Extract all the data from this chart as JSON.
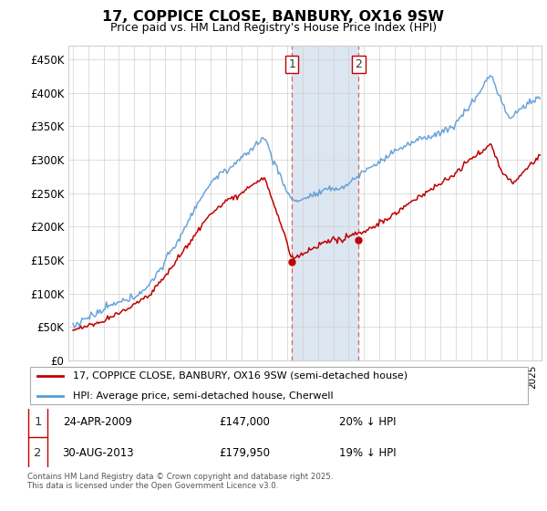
{
  "title": "17, COPPICE CLOSE, BANBURY, OX16 9SW",
  "subtitle": "Price paid vs. HM Land Registry's House Price Index (HPI)",
  "legend_line1": "17, COPPICE CLOSE, BANBURY, OX16 9SW (semi-detached house)",
  "legend_line2": "HPI: Average price, semi-detached house, Cherwell",
  "footnote": "Contains HM Land Registry data © Crown copyright and database right 2025.\nThis data is licensed under the Open Government Licence v3.0.",
  "transaction1_date": "24-APR-2009",
  "transaction1_price": "£147,000",
  "transaction1_hpi": "20% ↓ HPI",
  "transaction2_date": "30-AUG-2013",
  "transaction2_price": "£179,950",
  "transaction2_hpi": "19% ↓ HPI",
  "marker1_year": 2009.31,
  "marker2_year": 2013.66,
  "marker1_price": 147000,
  "marker2_price": 179950,
  "ylim": [
    0,
    470000
  ],
  "yticks": [
    0,
    50000,
    100000,
    150000,
    200000,
    250000,
    300000,
    350000,
    400000,
    450000
  ],
  "ytick_labels": [
    "£0",
    "£50K",
    "£100K",
    "£150K",
    "£200K",
    "£250K",
    "£300K",
    "£350K",
    "£400K",
    "£450K"
  ],
  "hpi_color": "#5b9bd5",
  "price_color": "#c00000",
  "marker_color": "#c00000",
  "shading_color": "#dce6f1",
  "grid_color": "#d0d0d0",
  "background_color": "#ffffff"
}
